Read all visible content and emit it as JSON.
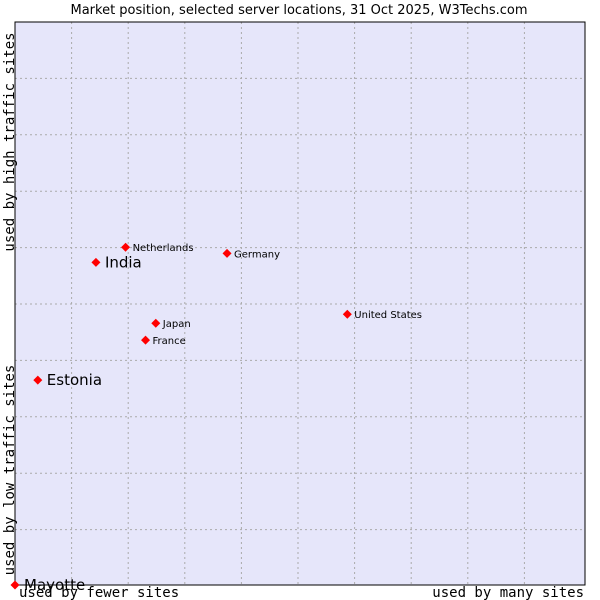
{
  "chart_data": {
    "type": "scatter",
    "title": "Market position, selected server locations, 31 Oct 2025, W3Techs.com",
    "xlabel_low": "used by fewer sites",
    "xlabel_high": "used by many sites",
    "ylabel_low": "used by low traffic sites",
    "ylabel_high": "used by high traffic sites",
    "xlim": [
      0,
      1
    ],
    "ylim": [
      0,
      1
    ],
    "grid": true,
    "colors": {
      "plot_background": "#e6e6fa",
      "grid": "#aaaaaa",
      "marker": "#ff0000",
      "border": "#000000"
    },
    "points": [
      {
        "label": "Netherlands",
        "x": 0.194,
        "y": 0.6,
        "emphasis": false
      },
      {
        "label": "India",
        "x": 0.142,
        "y": 0.573,
        "emphasis": true
      },
      {
        "label": "Germany",
        "x": 0.372,
        "y": 0.589,
        "emphasis": false
      },
      {
        "label": "United States",
        "x": 0.583,
        "y": 0.481,
        "emphasis": false
      },
      {
        "label": "Japan",
        "x": 0.247,
        "y": 0.465,
        "emphasis": false
      },
      {
        "label": "France",
        "x": 0.229,
        "y": 0.435,
        "emphasis": false
      },
      {
        "label": "Estonia",
        "x": 0.04,
        "y": 0.364,
        "emphasis": true
      },
      {
        "label": "Mayotte",
        "x": 0.0,
        "y": 0.0,
        "emphasis": true
      }
    ]
  }
}
